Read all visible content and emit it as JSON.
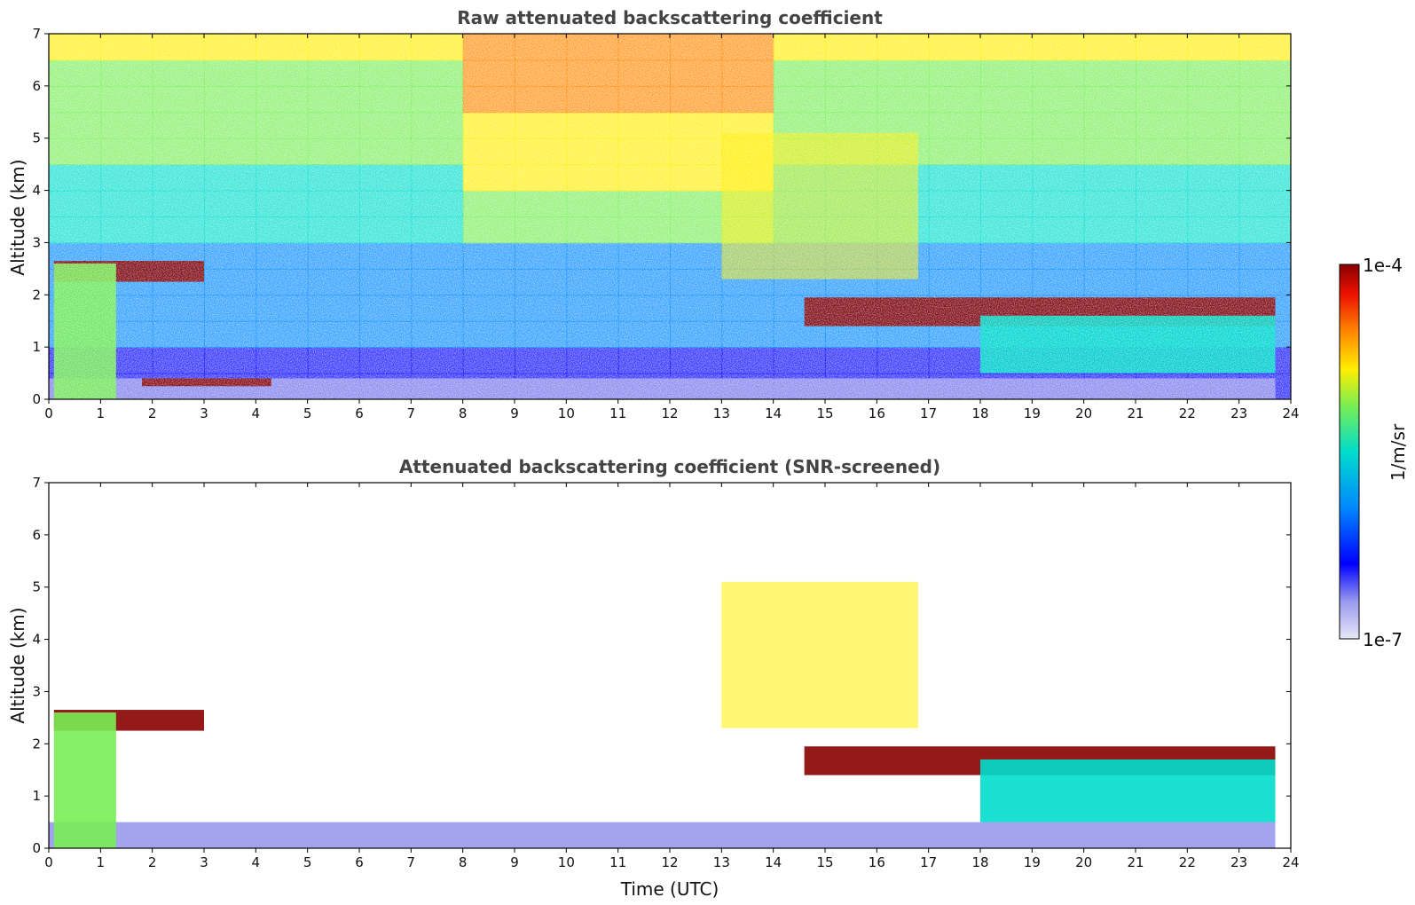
{
  "chart_data": [
    {
      "type": "heatmap",
      "title": "Raw attenuated backscattering coefficient",
      "xlabel": "",
      "ylabel": "Altitude (km)",
      "xlim": [
        0,
        24
      ],
      "ylim": [
        0,
        7
      ],
      "xticks": [
        "0",
        "1",
        "2",
        "3",
        "4",
        "5",
        "6",
        "7",
        "8",
        "9",
        "10",
        "11",
        "12",
        "13",
        "14",
        "15",
        "16",
        "17",
        "18",
        "19",
        "20",
        "21",
        "22",
        "23",
        "24"
      ],
      "yticks": [
        "0",
        "1",
        "2",
        "3",
        "4",
        "5",
        "6",
        "7"
      ],
      "features": [
        {
          "name": "cloud-layer",
          "x": [
            0.1,
            3.0
          ],
          "y": [
            2.25,
            2.65
          ],
          "level": 1.0
        },
        {
          "name": "cloud-layer",
          "x": [
            14.6,
            23.7
          ],
          "y": [
            1.4,
            1.95
          ],
          "level": 1.0
        },
        {
          "name": "boundary-layer",
          "x": [
            0,
            23.7
          ],
          "y": [
            0,
            0.4
          ],
          "level": 0.15
        },
        {
          "name": "residual-layer",
          "x": [
            1.8,
            4.3
          ],
          "y": [
            0.25,
            0.4
          ],
          "level": 1.0
        },
        {
          "name": "precipitation",
          "x": [
            0.1,
            1.3
          ],
          "y": [
            0,
            2.6
          ],
          "level": 0.55
        },
        {
          "name": "precipitation",
          "x": [
            18,
            23.7
          ],
          "y": [
            0.5,
            1.6
          ],
          "level": 0.45
        },
        {
          "name": "virga",
          "x": [
            13,
            16.8
          ],
          "y": [
            2.3,
            5.1
          ],
          "level": 0.7
        }
      ]
    },
    {
      "type": "heatmap",
      "title": "Attenuated backscattering coefficient (SNR-screened)",
      "xlabel": "Time (UTC)",
      "ylabel": "Altitude (km)",
      "xlim": [
        0,
        24
      ],
      "ylim": [
        0,
        7
      ],
      "xticks": [
        "0",
        "1",
        "2",
        "3",
        "4",
        "5",
        "6",
        "7",
        "8",
        "9",
        "10",
        "11",
        "12",
        "13",
        "14",
        "15",
        "16",
        "17",
        "18",
        "19",
        "20",
        "21",
        "22",
        "23",
        "24"
      ],
      "yticks": [
        "0",
        "1",
        "2",
        "3",
        "4",
        "5",
        "6",
        "7"
      ],
      "features": [
        {
          "name": "cloud-layer",
          "x": [
            0.1,
            3.0
          ],
          "y": [
            2.25,
            2.65
          ],
          "level": 1.0
        },
        {
          "name": "cloud-layer",
          "x": [
            14.6,
            23.7
          ],
          "y": [
            1.4,
            1.95
          ],
          "level": 1.0
        },
        {
          "name": "boundary-layer",
          "x": [
            0,
            23.7
          ],
          "y": [
            0,
            0.5
          ],
          "level": 0.15
        },
        {
          "name": "precipitation",
          "x": [
            0.1,
            1.3
          ],
          "y": [
            0,
            2.6
          ],
          "level": 0.55
        },
        {
          "name": "precipitation",
          "x": [
            18,
            23.7
          ],
          "y": [
            0.5,
            1.7
          ],
          "level": 0.45
        },
        {
          "name": "virga",
          "x": [
            13,
            16.8
          ],
          "y": [
            2.3,
            5.1
          ],
          "level": 0.7
        }
      ]
    }
  ],
  "colorbar": {
    "label": "1/m/sr",
    "max_label": "1e-4",
    "min_label": "1e-7",
    "colors": [
      "#e8e8f8",
      "#9999ee",
      "#0000ff",
      "#0088ff",
      "#00ddcc",
      "#77ee55",
      "#ffee00",
      "#ff8800",
      "#ee1100",
      "#880000"
    ]
  }
}
